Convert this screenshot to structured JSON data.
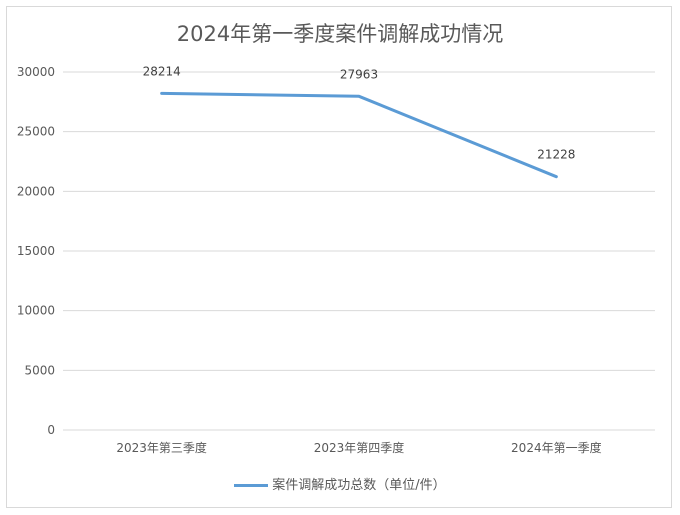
{
  "chart_data": {
    "type": "line",
    "title": "2024年第一季度案件调解成功情况",
    "categories": [
      "2023年第三季度",
      "2023年第四季度",
      "2024年第一季度"
    ],
    "series": [
      {
        "name": "案件调解成功总数（单位/件）",
        "values": [
          28214,
          27963,
          21228
        ],
        "color": "#5b9bd5"
      }
    ],
    "ylim": [
      0,
      30000
    ],
    "yticks": [
      0,
      5000,
      10000,
      15000,
      20000,
      25000,
      30000
    ],
    "grid": true,
    "legend": "bottom",
    "data_labels": true
  }
}
